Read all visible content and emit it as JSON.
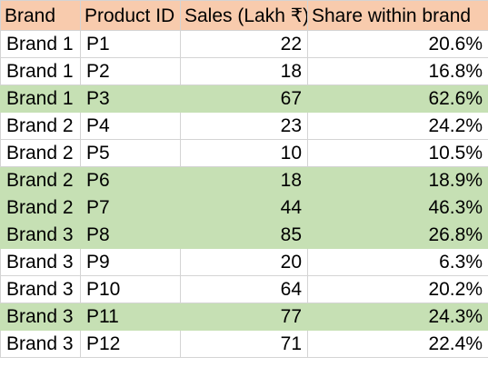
{
  "colors": {
    "header_fill": "#f8cbad",
    "highlight_fill": "#c6e0b4",
    "gridline": "#d4d4d4"
  },
  "table": {
    "headers": [
      "Brand",
      "Product ID",
      "Sales (Lakh ₹)",
      "Share within brand"
    ],
    "rows": [
      {
        "brand": "Brand 1",
        "product": "P1",
        "sales": "22",
        "share": "20.6%",
        "highlight": false
      },
      {
        "brand": "Brand 1",
        "product": "P2",
        "sales": "18",
        "share": "16.8%",
        "highlight": false
      },
      {
        "brand": "Brand 1",
        "product": "P3",
        "sales": "67",
        "share": "62.6%",
        "highlight": true
      },
      {
        "brand": "Brand 2",
        "product": "P4",
        "sales": "23",
        "share": "24.2%",
        "highlight": false
      },
      {
        "brand": "Brand 2",
        "product": "P5",
        "sales": "10",
        "share": "10.5%",
        "highlight": false
      },
      {
        "brand": "Brand 2",
        "product": "P6",
        "sales": "18",
        "share": "18.9%",
        "highlight": true
      },
      {
        "brand": "Brand 2",
        "product": "P7",
        "sales": "44",
        "share": "46.3%",
        "highlight": true
      },
      {
        "brand": "Brand 3",
        "product": "P8",
        "sales": "85",
        "share": "26.8%",
        "highlight": true
      },
      {
        "brand": "Brand 3",
        "product": "P9",
        "sales": "20",
        "share": "6.3%",
        "highlight": false
      },
      {
        "brand": "Brand 3",
        "product": "P10",
        "sales": "64",
        "share": "20.2%",
        "highlight": false
      },
      {
        "brand": "Brand 3",
        "product": "P11",
        "sales": "77",
        "share": "24.3%",
        "highlight": true
      },
      {
        "brand": "Brand 3",
        "product": "P12",
        "sales": "71",
        "share": "22.4%",
        "highlight": false
      }
    ]
  }
}
